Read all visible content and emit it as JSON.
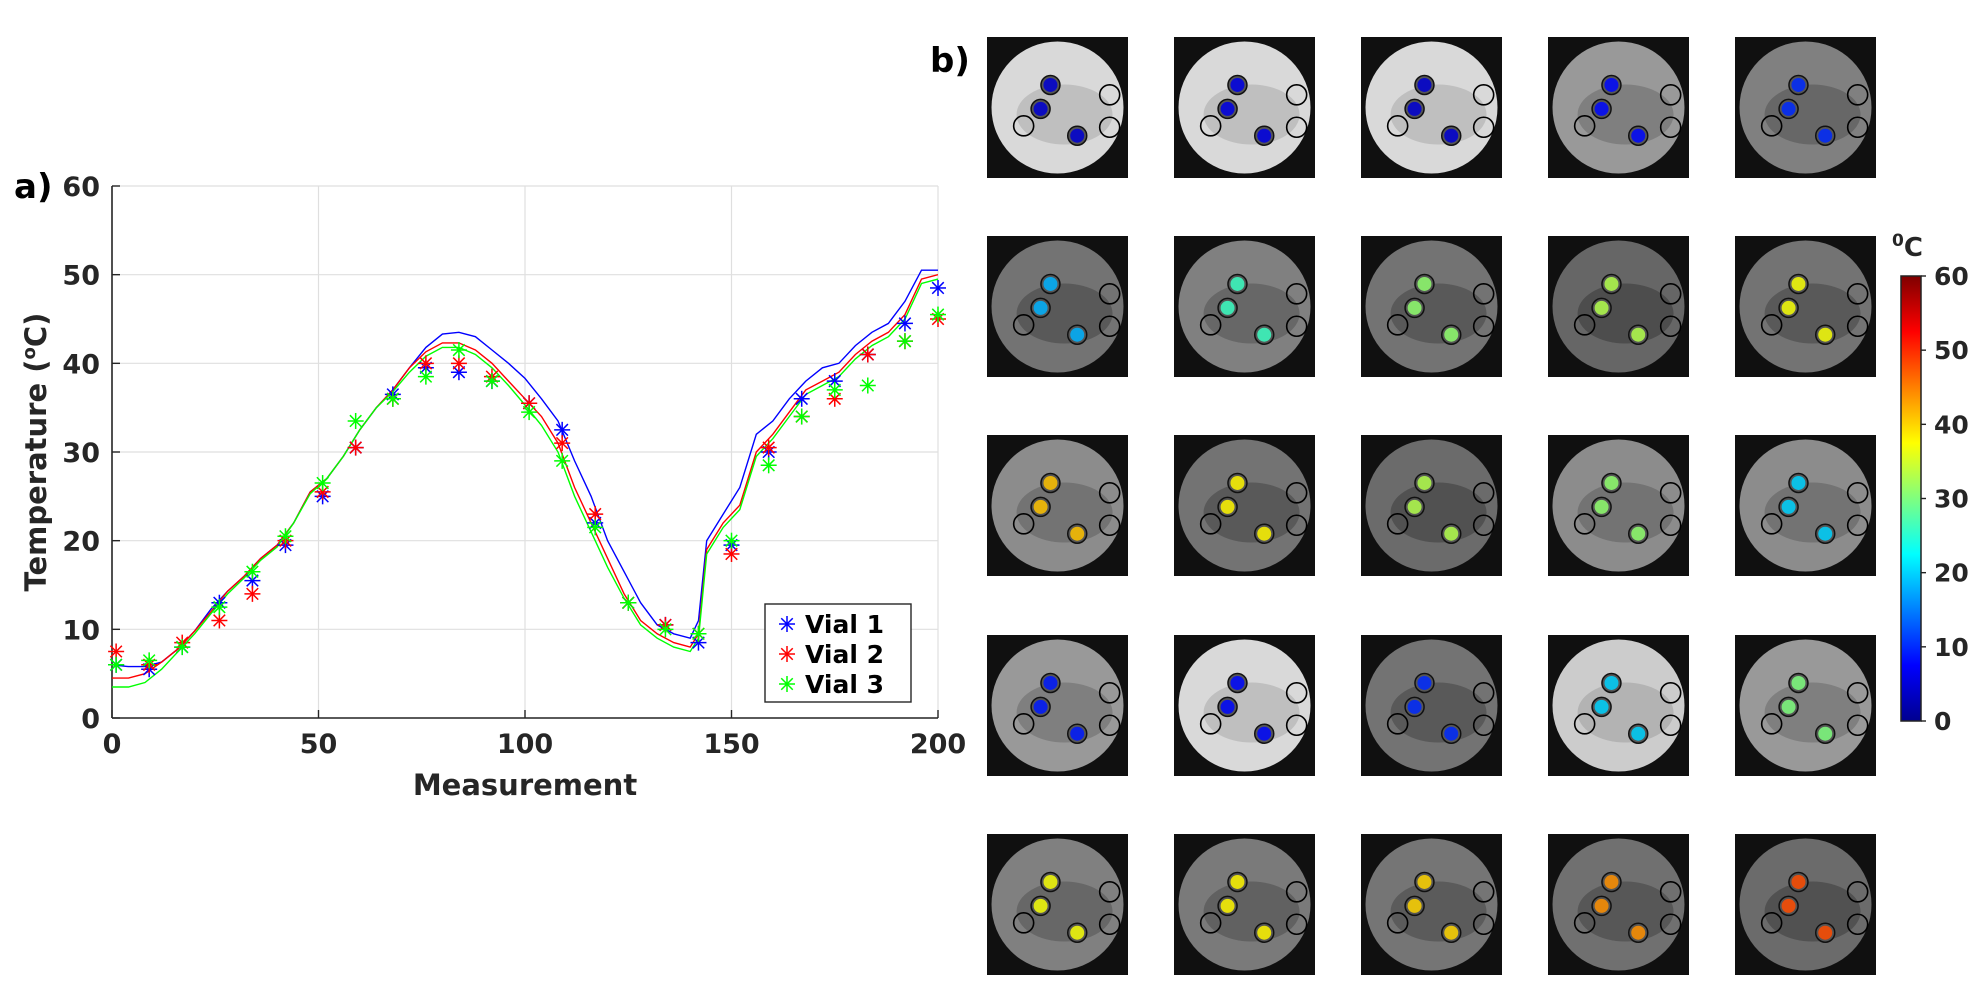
{
  "panel_a_label": "a)",
  "panel_b_label": "b)",
  "chart_data": {
    "type": "line",
    "title": "",
    "xlabel": "Measurement",
    "ylabel_main": "Temperature (",
    "ylabel_sup": "o",
    "ylabel_end": "C)",
    "xlim": [
      0,
      200
    ],
    "ylim": [
      0,
      60
    ],
    "xticks": [
      0,
      50,
      100,
      150,
      200
    ],
    "yticks": [
      0,
      10,
      20,
      30,
      40,
      50,
      60
    ],
    "grid": true,
    "legend_position": "bottom-right",
    "series": [
      {
        "name": "Vial 1",
        "color": "#0000ff",
        "line_x": [
          0,
          4,
          8,
          12,
          16,
          20,
          24,
          28,
          32,
          36,
          40,
          44,
          48,
          52,
          56,
          60,
          64,
          68,
          72,
          76,
          80,
          84,
          88,
          92,
          96,
          100,
          104,
          108,
          112,
          116,
          120,
          124,
          128,
          132,
          136,
          140,
          142,
          144,
          148,
          152,
          156,
          160,
          164,
          168,
          172,
          176,
          180,
          184,
          188,
          192,
          196,
          200
        ],
        "line_y": [
          6,
          5.8,
          5.8,
          6.3,
          7.8,
          9.8,
          12.3,
          14.3,
          16,
          18,
          19.5,
          22,
          25.5,
          27,
          29.5,
          32.5,
          35,
          37,
          39.5,
          41.8,
          43.3,
          43.5,
          43,
          41.5,
          40,
          38.3,
          36,
          33.5,
          29,
          25,
          20,
          16.5,
          13,
          10.5,
          9.5,
          9,
          11,
          20,
          23,
          26,
          32,
          33.5,
          36,
          38,
          39.5,
          40,
          42,
          43.5,
          44.5,
          47,
          50.5,
          50.5
        ],
        "marker_x": [
          1,
          9,
          17,
          26,
          34,
          42,
          51,
          59,
          68,
          76,
          84,
          92,
          101,
          109,
          117,
          125,
          134,
          142,
          150,
          159,
          167,
          175,
          183,
          192,
          200
        ],
        "marker_y": [
          6,
          5.5,
          8,
          13,
          15.5,
          19.5,
          25,
          30.5,
          36.5,
          39.5,
          39,
          38,
          35.5,
          32.5,
          22,
          13,
          10.5,
          8.5,
          19.5,
          30,
          36,
          38,
          41,
          44.5,
          48.5
        ]
      },
      {
        "name": "Vial 2",
        "color": "#ff0000",
        "line_x": [
          0,
          4,
          8,
          12,
          16,
          20,
          24,
          28,
          32,
          36,
          40,
          44,
          48,
          52,
          56,
          60,
          64,
          68,
          72,
          76,
          80,
          84,
          88,
          92,
          96,
          100,
          104,
          108,
          112,
          116,
          120,
          124,
          128,
          132,
          136,
          140,
          142,
          144,
          148,
          152,
          156,
          160,
          164,
          168,
          172,
          176,
          180,
          184,
          188,
          192,
          196,
          200
        ],
        "line_y": [
          4.5,
          4.5,
          5,
          6.3,
          7.8,
          9.8,
          12,
          14.3,
          16,
          18,
          19.5,
          22,
          25.5,
          27,
          29.5,
          32.5,
          35,
          37,
          39.5,
          41.3,
          42.3,
          42.3,
          41.5,
          40,
          38,
          36,
          34,
          31,
          26,
          22,
          18,
          14,
          11,
          9.5,
          8.5,
          8,
          9.5,
          19,
          22,
          24,
          30,
          32,
          34.5,
          37,
          38,
          39,
          41,
          42.5,
          43.5,
          45.5,
          49.5,
          50
        ],
        "marker_x": [
          1,
          9,
          17,
          26,
          34,
          42,
          51,
          59,
          68,
          76,
          84,
          92,
          101,
          109,
          117,
          125,
          134,
          142,
          150,
          159,
          167,
          175,
          183,
          192,
          200
        ],
        "marker_y": [
          7.5,
          6,
          8.5,
          11,
          14,
          20,
          25.5,
          30.5,
          36,
          40,
          40,
          38.5,
          35.5,
          31,
          23,
          13,
          10.5,
          9.5,
          18.5,
          30.5,
          34,
          36,
          41,
          42.5,
          45
        ]
      },
      {
        "name": "Vial 3",
        "color": "#00ff00",
        "line_x": [
          0,
          4,
          8,
          12,
          16,
          20,
          24,
          28,
          32,
          36,
          40,
          44,
          48,
          52,
          56,
          60,
          64,
          68,
          72,
          76,
          80,
          84,
          88,
          92,
          96,
          100,
          104,
          108,
          112,
          116,
          120,
          124,
          128,
          132,
          136,
          140,
          142,
          144,
          148,
          152,
          156,
          160,
          164,
          168,
          172,
          176,
          180,
          184,
          188,
          192,
          196,
          200
        ],
        "line_y": [
          3.5,
          3.5,
          4,
          5.5,
          7.5,
          9.5,
          11.8,
          14,
          15.8,
          17.8,
          19.3,
          22,
          25.3,
          27,
          29.5,
          32.5,
          35,
          36.8,
          39,
          40.8,
          41.8,
          41.8,
          41,
          39.5,
          37.5,
          35.3,
          33,
          30,
          25,
          21,
          17,
          13.5,
          10.5,
          9,
          8,
          7.5,
          9,
          18.5,
          21.5,
          23.5,
          29.5,
          31.5,
          34,
          36.5,
          37.5,
          38.5,
          40.5,
          42,
          43,
          45,
          49,
          49.5
        ],
        "marker_x": [
          1,
          9,
          17,
          26,
          34,
          42,
          51,
          59,
          68,
          76,
          84,
          92,
          101,
          109,
          117,
          125,
          134,
          142,
          150,
          159,
          167,
          175,
          183,
          192,
          200
        ],
        "marker_y": [
          6,
          6.5,
          8,
          12.5,
          16.5,
          20.5,
          26.5,
          33.5,
          36,
          38.5,
          41.5,
          38,
          34.5,
          29,
          21.5,
          13,
          10,
          9.5,
          20,
          28.5,
          34,
          37,
          37.5,
          42.5,
          45.5
        ]
      }
    ]
  },
  "colorbar": {
    "title_sup": "0",
    "title_unit": "C",
    "min": 0,
    "max": 60,
    "ticks": [
      0,
      10,
      20,
      30,
      40,
      50,
      60
    ]
  },
  "thumbnails": {
    "rows": 5,
    "cols": 5,
    "vial_temperatures": [
      5,
      6,
      5,
      8,
      10,
      18,
      26,
      31,
      33,
      37,
      41,
      38,
      33,
      31,
      20,
      9,
      8,
      10,
      20,
      30,
      37,
      38,
      40,
      44,
      48
    ],
    "background_brightness": [
      0.85,
      0.85,
      0.85,
      0.6,
      0.5,
      0.45,
      0.5,
      0.45,
      0.4,
      0.45,
      0.55,
      0.45,
      0.42,
      0.55,
      0.55,
      0.6,
      0.85,
      0.45,
      0.8,
      0.6,
      0.5,
      0.48,
      0.46,
      0.44,
      0.42
    ],
    "outer_rim_color": "#101010",
    "empty_vial_color": "#000000"
  }
}
